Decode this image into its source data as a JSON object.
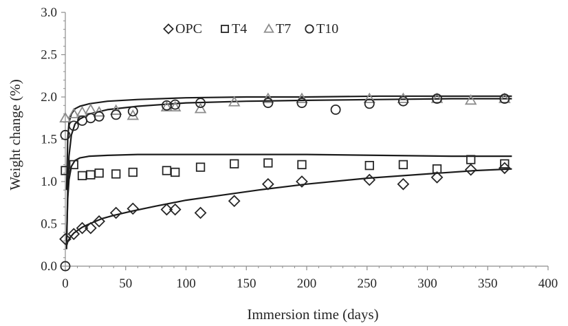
{
  "chart_data": {
    "type": "scatter",
    "xlabel": "Immersion time (days)",
    "ylabel": "Weight change (%)",
    "xlim": [
      0,
      400
    ],
    "ylim": [
      0.0,
      3.0
    ],
    "x_ticks": [
      "0",
      "50",
      "100",
      "150",
      "200",
      "250",
      "300",
      "350",
      "400"
    ],
    "y_ticks": [
      "0.0",
      "0.5",
      "1.0",
      "1.5",
      "2.0",
      "2.5",
      "3.0"
    ],
    "grid": false,
    "legend_position": "top",
    "series": [
      {
        "name": "OPC",
        "marker": "diamond",
        "color": "#262626",
        "points": [
          [
            0,
            0.32
          ],
          [
            7,
            0.38
          ],
          [
            14,
            0.45
          ],
          [
            21,
            0.45
          ],
          [
            28,
            0.53
          ],
          [
            42,
            0.63
          ],
          [
            56,
            0.68
          ],
          [
            84,
            0.67
          ],
          [
            91,
            0.67
          ],
          [
            112,
            0.63
          ],
          [
            140,
            0.77
          ],
          [
            168,
            0.97
          ],
          [
            196,
            1.0
          ],
          [
            252,
            1.02
          ],
          [
            280,
            0.97
          ],
          [
            308,
            1.05
          ],
          [
            336,
            1.14
          ],
          [
            364,
            1.16
          ]
        ],
        "trend": [
          [
            1,
            0.24
          ],
          [
            2,
            0.29
          ],
          [
            4,
            0.34
          ],
          [
            7,
            0.39
          ],
          [
            10,
            0.42
          ],
          [
            14,
            0.46
          ],
          [
            20,
            0.5
          ],
          [
            30,
            0.56
          ],
          [
            40,
            0.6
          ],
          [
            55,
            0.65
          ],
          [
            75,
            0.71
          ],
          [
            100,
            0.78
          ],
          [
            130,
            0.84
          ],
          [
            160,
            0.9
          ],
          [
            200,
            0.97
          ],
          [
            250,
            1.04
          ],
          [
            300,
            1.09
          ],
          [
            340,
            1.13
          ],
          [
            370,
            1.15
          ]
        ]
      },
      {
        "name": "T4",
        "marker": "square",
        "color": "#262626",
        "points": [
          [
            0,
            1.13
          ],
          [
            7,
            1.2
          ],
          [
            14,
            1.07
          ],
          [
            21,
            1.08
          ],
          [
            28,
            1.1
          ],
          [
            42,
            1.09
          ],
          [
            56,
            1.11
          ],
          [
            84,
            1.13
          ],
          [
            91,
            1.11
          ],
          [
            112,
            1.17
          ],
          [
            140,
            1.21
          ],
          [
            168,
            1.22
          ],
          [
            196,
            1.2
          ],
          [
            252,
            1.19
          ],
          [
            280,
            1.2
          ],
          [
            308,
            1.15
          ],
          [
            336,
            1.26
          ],
          [
            364,
            1.21
          ]
        ],
        "trend": [
          [
            1,
            0.3
          ],
          [
            2,
            0.8
          ],
          [
            3,
            1.02
          ],
          [
            5,
            1.18
          ],
          [
            8,
            1.25
          ],
          [
            12,
            1.28
          ],
          [
            20,
            1.3
          ],
          [
            35,
            1.31
          ],
          [
            60,
            1.32
          ],
          [
            100,
            1.32
          ],
          [
            150,
            1.32
          ],
          [
            200,
            1.32
          ],
          [
            260,
            1.31
          ],
          [
            320,
            1.3
          ],
          [
            370,
            1.3
          ]
        ]
      },
      {
        "name": "T7",
        "marker": "triangle",
        "color": "#8c8c8c",
        "points": [
          [
            0,
            1.75
          ],
          [
            7,
            1.8
          ],
          [
            14,
            1.82
          ],
          [
            21,
            1.85
          ],
          [
            28,
            1.82
          ],
          [
            42,
            1.84
          ],
          [
            56,
            1.78
          ],
          [
            84,
            1.88
          ],
          [
            91,
            1.88
          ],
          [
            112,
            1.86
          ],
          [
            140,
            1.94
          ],
          [
            168,
            1.98
          ],
          [
            196,
            1.98
          ],
          [
            252,
            1.98
          ],
          [
            280,
            1.98
          ],
          [
            308,
            1.98
          ],
          [
            336,
            1.96
          ],
          [
            364,
            1.98
          ]
        ],
        "trend": [
          [
            1,
            0.9
          ],
          [
            2,
            1.5
          ],
          [
            3,
            1.7
          ],
          [
            5,
            1.8
          ],
          [
            8,
            1.86
          ],
          [
            12,
            1.89
          ],
          [
            20,
            1.92
          ],
          [
            35,
            1.95
          ],
          [
            60,
            1.97
          ],
          [
            100,
            1.99
          ],
          [
            150,
            2.0
          ],
          [
            200,
            2.0
          ],
          [
            260,
            2.01
          ],
          [
            320,
            2.01
          ],
          [
            370,
            2.01
          ]
        ]
      },
      {
        "name": "T10",
        "marker": "circle",
        "color": "#262626",
        "points": [
          [
            0,
            0.0
          ],
          [
            0,
            1.55
          ],
          [
            7,
            1.66
          ],
          [
            14,
            1.72
          ],
          [
            21,
            1.75
          ],
          [
            28,
            1.77
          ],
          [
            42,
            1.79
          ],
          [
            56,
            1.83
          ],
          [
            84,
            1.9
          ],
          [
            91,
            1.91
          ],
          [
            112,
            1.93
          ],
          [
            168,
            1.93
          ],
          [
            196,
            1.93
          ],
          [
            224,
            1.85
          ],
          [
            252,
            1.92
          ],
          [
            280,
            1.95
          ],
          [
            308,
            1.98
          ],
          [
            364,
            1.98
          ]
        ],
        "trend": [
          [
            1,
            0.2
          ],
          [
            2,
            0.9
          ],
          [
            3,
            1.3
          ],
          [
            5,
            1.55
          ],
          [
            8,
            1.68
          ],
          [
            12,
            1.74
          ],
          [
            20,
            1.8
          ],
          [
            35,
            1.85
          ],
          [
            60,
            1.89
          ],
          [
            100,
            1.93
          ],
          [
            150,
            1.95
          ],
          [
            200,
            1.96
          ],
          [
            260,
            1.97
          ],
          [
            320,
            1.98
          ],
          [
            370,
            1.98
          ]
        ]
      }
    ]
  }
}
